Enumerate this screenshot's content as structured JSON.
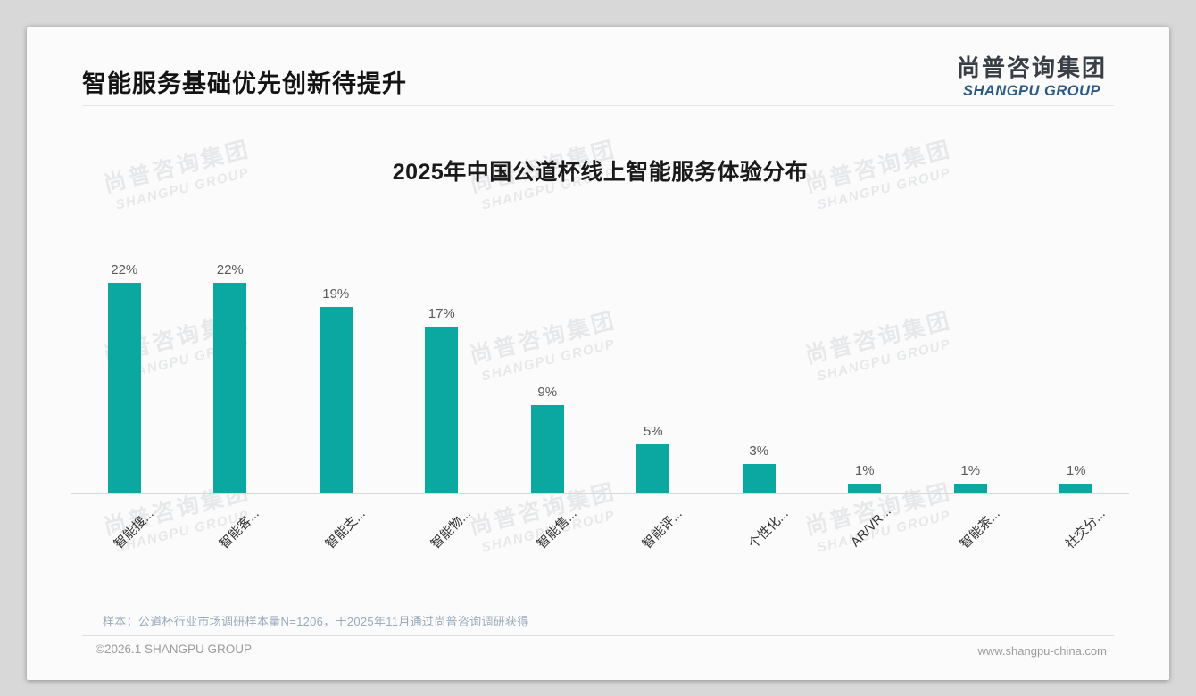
{
  "page": {
    "outer_background": "#d8d8d8",
    "card_background": "#fbfbfb"
  },
  "header": {
    "title": "智能服务基础优先创新待提升",
    "logo": {
      "chinese": "尚普咨询集团",
      "english": "SHANGPU GROUP",
      "english_color": "#2c5a86"
    }
  },
  "watermark": {
    "line1": "尚普咨询集团",
    "line2": "SHANGPU GROUP"
  },
  "chart_data": {
    "type": "bar",
    "title": "2025年中国公道杯线上智能服务体验分布",
    "categories": [
      "智能搜...",
      "智能客...",
      "智能支...",
      "智能物...",
      "智能售...",
      "智能评...",
      "个性化...",
      "AR/VR...",
      "智能茶...",
      "社交分..."
    ],
    "values": [
      22,
      22,
      19,
      17,
      9,
      5,
      3,
      1,
      1,
      1
    ],
    "value_labels": [
      "22%",
      "22%",
      "19%",
      "17%",
      "9%",
      "5%",
      "3%",
      "1%",
      "1%",
      "1%"
    ],
    "bar_color": "#0aa8a0",
    "axis_line_color": "#d8d8d8",
    "xlabel": "",
    "ylabel": "",
    "ylim": [
      0,
      24
    ],
    "grid": false,
    "legend": null,
    "x_label_rotation_deg": 45
  },
  "footer": {
    "sample_note": "样本：公道杯行业市场调研样本量N=1206，于2025年11月通过尚普咨询调研获得",
    "copyright": "©2026.1 SHANGPU GROUP",
    "website": "www.shangpu-china.com"
  }
}
